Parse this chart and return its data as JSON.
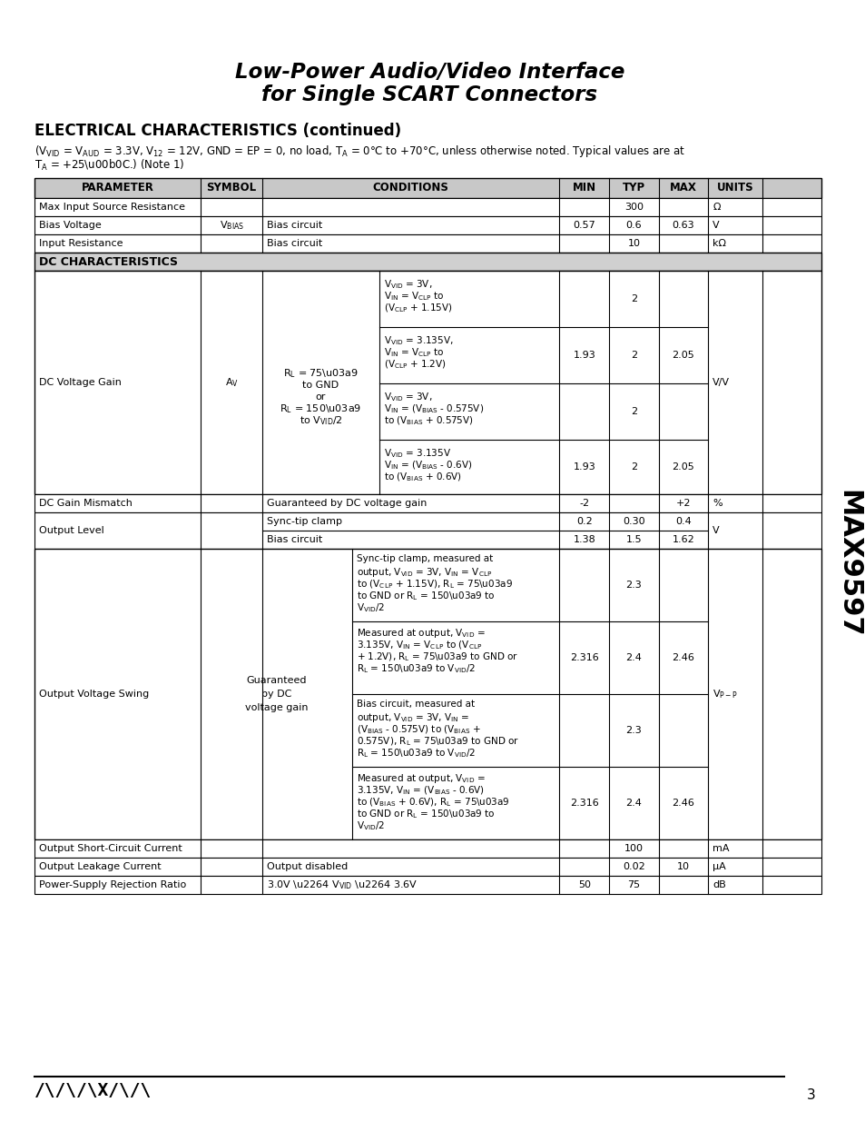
{
  "title_line1": "Low-Power Audio/Video Interface",
  "title_line2": "for Single SCART Connectors",
  "section_title": "ELECTRICAL CHARACTERISTICS (continued)",
  "note_text": "(Vᴠᴵᴅ = Vᴀᵁᴅ = 3.3V, V₁₂ = 12V, GND = EP = 0, no load, Tᴀ = 0°C to +70°C, unless otherwise noted. Typical values are at\nTᴀ = +25°C.) (Note 1)",
  "side_text": "MAX9597",
  "page_num": "3",
  "bg_color": "#ffffff",
  "header_bg": "#d0d0d0",
  "dc_char_bg": "#e8e8e8",
  "border_color": "#000000"
}
